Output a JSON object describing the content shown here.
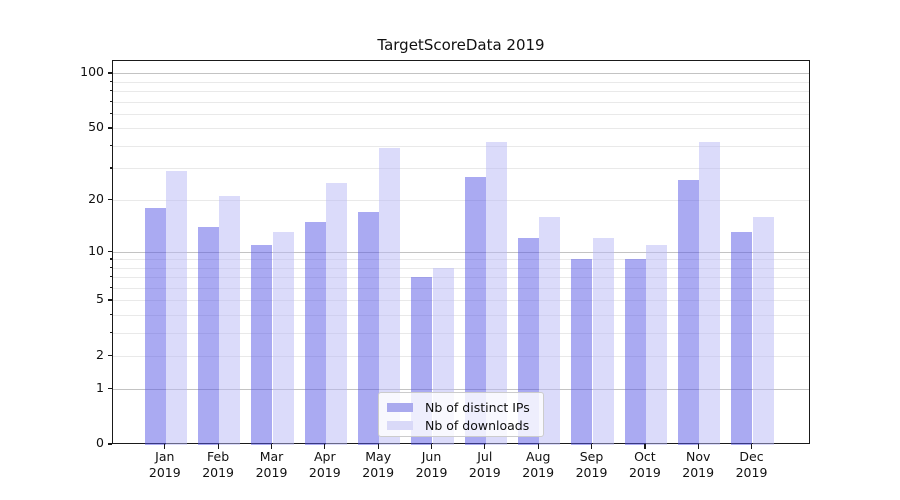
{
  "title": "TargetScoreData 2019",
  "chart_data": {
    "type": "bar",
    "title": "TargetScoreData 2019",
    "categories": [
      "Jan",
      "Feb",
      "Mar",
      "Apr",
      "May",
      "Jun",
      "Jul",
      "Aug",
      "Sep",
      "Oct",
      "Nov",
      "Dec"
    ],
    "category_year": "2019",
    "series": [
      {
        "name": "Nb of distinct IPs",
        "fill_color": "rgba(85,85,230,0.5)",
        "legend_color": "#aaaaee",
        "values": [
          18,
          14,
          11,
          15,
          17,
          7,
          27,
          12,
          9,
          9,
          26,
          13
        ]
      },
      {
        "name": "Nb of downloads",
        "fill_color": "rgba(183,183,245,0.5)",
        "legend_color": "#d9d9f8",
        "values": [
          29,
          21,
          13,
          25,
          39,
          8,
          42,
          16,
          12,
          11,
          42,
          16
        ]
      }
    ],
    "yscale": "log1p",
    "ylim": [
      0,
      110
    ],
    "y_tick_labels": [
      "0",
      "1",
      "2",
      "5",
      "10",
      "20",
      "50",
      "100"
    ],
    "y_tick_values": [
      0,
      1,
      2,
      5,
      10,
      20,
      50,
      100
    ],
    "y_major_gridlines": [
      1,
      10,
      100
    ],
    "y_minor_gridlines": [
      2,
      3,
      4,
      5,
      6,
      7,
      8,
      9,
      20,
      30,
      40,
      50,
      60,
      70,
      80,
      90
    ],
    "grid": "on",
    "legend_position": "lower center"
  }
}
